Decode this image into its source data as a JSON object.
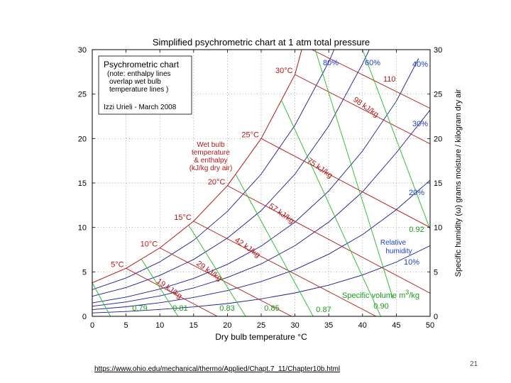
{
  "slide": {
    "url": "https://www.ohio.edu/mechanical/thermo/Applied/Chapt.7_11/Chapter10b.html",
    "page_number": "21"
  },
  "chart_data": {
    "type": "line",
    "title": "Simplified psychrometric chart at 1 atm total pressure",
    "xlabel": "Dry bulb temperature °C",
    "ylabel": "Specific humidity (ω) grams moisture / kilogram dry air",
    "xlim": [
      0,
      50
    ],
    "ylim": [
      0,
      30
    ],
    "x_ticks": [
      "0",
      "5",
      "10",
      "15",
      "20",
      "25",
      "30",
      "35",
      "40",
      "45",
      "50"
    ],
    "y_ticks": [
      "0",
      "5",
      "10",
      "15",
      "20",
      "25",
      "30"
    ],
    "grid": true,
    "colors": {
      "rh": "#1a1a8c",
      "enthalpy": "#b01818",
      "volume": "#22bb22",
      "rh_label": "#1f3fbf",
      "enthalpy_label": "#b01818",
      "saturation": "#b01818"
    },
    "info_box": {
      "title": "Psychrometric chart",
      "note": [
        "(note: enthalpy lines",
        "overlap wet bulb",
        "temperature lines )"
      ],
      "author": "Izzi Urieli - March 2008"
    },
    "wet_bulb_label": [
      "Wet bulb",
      "temperature",
      "& enthalpy",
      "(kJ/kg dry air)"
    ],
    "relative_humidity_label": [
      "Relative",
      "humidity"
    ],
    "specific_volume_label": {
      "text": "Specific volume m",
      "sup": "3",
      "tail": "/kg"
    },
    "relative_humidity_series": [
      {
        "name": "10%",
        "points": [
          [
            0,
            0.38
          ],
          [
            5,
            0.54
          ],
          [
            10,
            0.77
          ],
          [
            15,
            1.06
          ],
          [
            20,
            1.44
          ],
          [
            25,
            1.96
          ],
          [
            30,
            2.63
          ],
          [
            35,
            3.5
          ],
          [
            40,
            4.65
          ],
          [
            45,
            6.1
          ],
          [
            50,
            7.95
          ]
        ]
      },
      {
        "name": "20%",
        "points": [
          [
            0,
            0.75
          ],
          [
            5,
            1.08
          ],
          [
            10,
            1.53
          ],
          [
            15,
            2.12
          ],
          [
            20,
            2.9
          ],
          [
            25,
            3.92
          ],
          [
            30,
            5.25
          ],
          [
            35,
            7.0
          ],
          [
            40,
            9.2
          ],
          [
            45,
            12.0
          ],
          [
            50,
            15.3
          ]
        ]
      },
      {
        "name": "30%",
        "points": [
          [
            0,
            1.13
          ],
          [
            5,
            1.62
          ],
          [
            10,
            2.3
          ],
          [
            15,
            3.19
          ],
          [
            20,
            4.37
          ],
          [
            25,
            5.9
          ],
          [
            30,
            7.95
          ],
          [
            35,
            10.6
          ],
          [
            40,
            14.0
          ],
          [
            45,
            18.4
          ],
          [
            50,
            23.2
          ]
        ]
      },
      {
        "name": "40%",
        "points": [
          [
            0,
            1.51
          ],
          [
            5,
            2.16
          ],
          [
            10,
            3.06
          ],
          [
            15,
            4.26
          ],
          [
            20,
            5.85
          ],
          [
            25,
            7.9
          ],
          [
            30,
            10.6
          ],
          [
            35,
            14.1
          ],
          [
            40,
            18.6
          ],
          [
            45,
            24.2
          ],
          [
            48.3,
            29.0
          ]
        ]
      },
      {
        "name": "60%",
        "points": [
          [
            0,
            2.26
          ],
          [
            5,
            3.24
          ],
          [
            10,
            4.6
          ],
          [
            15,
            6.4
          ],
          [
            20,
            8.8
          ],
          [
            25,
            11.9
          ],
          [
            30,
            16.0
          ],
          [
            35,
            21.4
          ],
          [
            40,
            28.4
          ],
          [
            41.0,
            30.0
          ]
        ]
      },
      {
        "name": "80%",
        "points": [
          [
            0,
            3.01
          ],
          [
            5,
            4.32
          ],
          [
            10,
            6.13
          ],
          [
            15,
            8.55
          ],
          [
            20,
            11.8
          ],
          [
            25,
            16.0
          ],
          [
            30,
            21.5
          ],
          [
            35,
            28.6
          ],
          [
            35.8,
            30.0
          ]
        ]
      }
    ],
    "saturation_curve": [
      [
        0,
        3.77
      ],
      [
        5,
        5.4
      ],
      [
        10,
        7.7
      ],
      [
        15,
        10.7
      ],
      [
        20,
        14.7
      ],
      [
        25,
        20.0
      ],
      [
        30,
        27.2
      ],
      [
        31.0,
        30.0
      ]
    ],
    "wet_bulb_lines": [
      {
        "temp": "5°C",
        "enthalpy": "19 kJ/kg",
        "start": [
          5,
          5.4
        ],
        "end": [
          18.5,
          0
        ]
      },
      {
        "temp": "10°C",
        "enthalpy": "29 kJ/kg",
        "start": [
          10,
          7.7
        ],
        "end": [
          29.5,
          0
        ]
      },
      {
        "temp": "15°C",
        "enthalpy": "42 kJ/kg",
        "start": [
          15,
          10.7
        ],
        "end": [
          42,
          0
        ]
      },
      {
        "temp": "20°C",
        "enthalpy": "57 kJ/kg",
        "start": [
          20,
          14.7
        ],
        "end": [
          50,
          2.6
        ]
      },
      {
        "temp": "25°C",
        "enthalpy": "75 kJ/kg",
        "start": [
          25,
          20.0
        ],
        "end": [
          50,
          10.0
        ]
      },
      {
        "temp": "30°C",
        "enthalpy": "98 kJ/kg",
        "start": [
          30,
          27.2
        ],
        "end": [
          50,
          19.4
        ]
      },
      {
        "temp": "",
        "enthalpy": "110",
        "start": [
          32.5,
          30.0
        ],
        "end": [
          50,
          23.4
        ]
      }
    ],
    "specific_volume_lines": [
      {
        "label": "0.79",
        "start": [
          0,
          3.77
        ],
        "end": [
          2.7,
          0
        ]
      },
      {
        "label": "0.81",
        "start": [
          7.3,
          6.4
        ],
        "end": [
          12.7,
          0
        ]
      },
      {
        "label": "0.83",
        "start": [
          14.3,
          10.2
        ],
        "end": [
          22.7,
          0
        ]
      },
      {
        "label": "0.85",
        "start": [
          21.2,
          16.0
        ],
        "end": [
          32.7,
          0
        ]
      },
      {
        "label": "0.87",
        "start": [
          28.0,
          24.3
        ],
        "end": [
          42.7,
          0
        ]
      },
      {
        "label": "0.90",
        "start": [
          33.0,
          30.0
        ],
        "end": [
          44.5,
          2.0
        ]
      },
      {
        "label": "0.92",
        "start": [
          40.0,
          30.0
        ],
        "end": [
          50,
          9.8
        ]
      }
    ]
  }
}
